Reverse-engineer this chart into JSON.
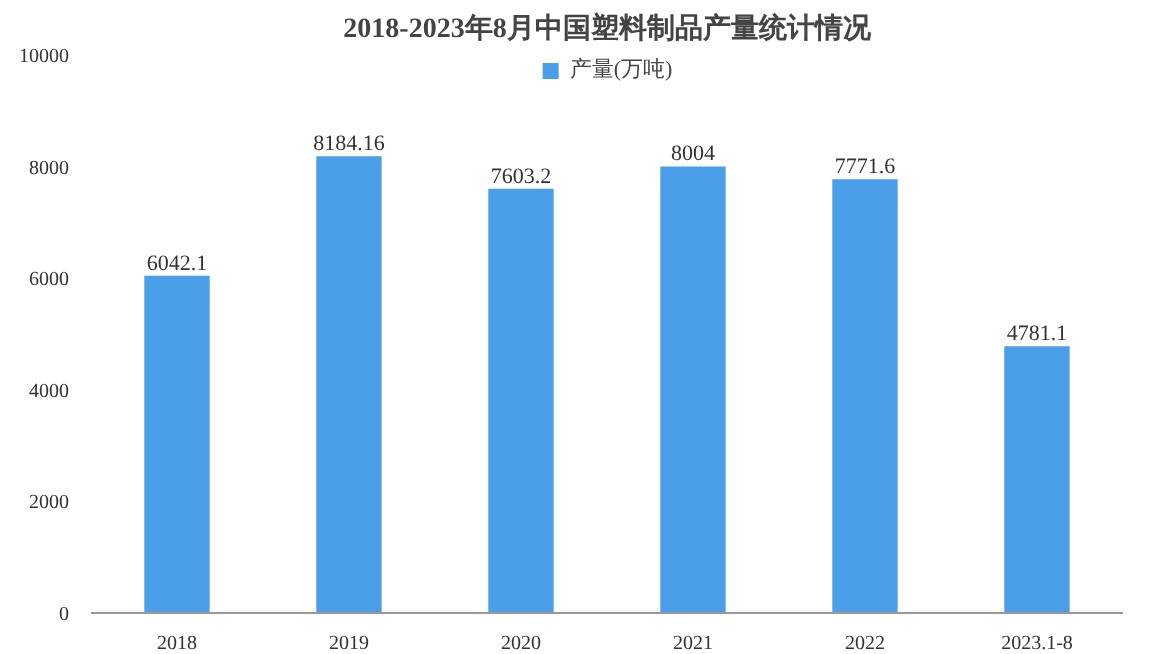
{
  "chart_data": {
    "type": "bar",
    "title": "2018-2023年8月中国塑料制品产量统计情况",
    "categories": [
      "2018",
      "2019",
      "2020",
      "2021",
      "2022",
      "2023.1-8"
    ],
    "series": [
      {
        "name": "产量(万吨)",
        "color": "#4a9fe8",
        "values": [
          6042.1,
          8184.16,
          7603.2,
          8004,
          7771.6,
          4781.1
        ]
      }
    ],
    "ylim": [
      0,
      10000
    ],
    "yticks": [
      0,
      2000,
      4000,
      6000,
      8000,
      10000
    ],
    "grid": false,
    "legend": "top",
    "data_labels": true
  }
}
